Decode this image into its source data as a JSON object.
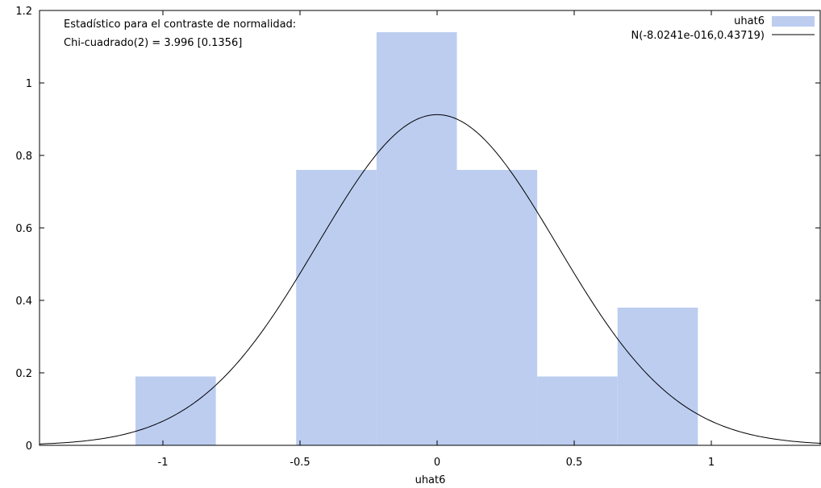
{
  "chart_data": {
    "type": "bar",
    "title": "",
    "xlabel": "uhat6",
    "ylabel": "",
    "xlim": [
      -1.45,
      1.4
    ],
    "ylim": [
      0,
      1.2
    ],
    "xticks": [
      -1,
      -0.5,
      0,
      0.5,
      1
    ],
    "xtick_labels": [
      "-1",
      "-0.5",
      "0",
      "0.5",
      "1"
    ],
    "yticks": [
      0,
      0.2,
      0.4,
      0.6,
      0.8,
      1,
      1.2
    ],
    "ytick_labels": [
      "0",
      "0.2",
      "0.4",
      "0.6",
      "0.8",
      "1",
      "1.2"
    ],
    "grid": false,
    "legend_position": "top-right",
    "bin_width": 0.293,
    "series": [
      {
        "name": "uhat6",
        "kind": "histogram",
        "color": "#bccdf0",
        "bins": [
          {
            "start": -1.1,
            "end": -0.807,
            "density": 0.19
          },
          {
            "start": -0.807,
            "end": -0.514,
            "density": 0
          },
          {
            "start": -0.514,
            "end": -0.221,
            "density": 0.76
          },
          {
            "start": -0.221,
            "end": 0.072,
            "density": 1.14
          },
          {
            "start": 0.072,
            "end": 0.365,
            "density": 0.76
          },
          {
            "start": 0.365,
            "end": 0.658,
            "density": 0.19
          },
          {
            "start": 0.658,
            "end": 0.951,
            "density": 0.38
          }
        ]
      },
      {
        "name": "N(-8.0241e-016,0.43719)",
        "kind": "normal-curve",
        "color": "#000000",
        "mean": -8.0241e-16,
        "sd": 0.43719
      }
    ],
    "annotations": [
      "Estadístico para el contraste de normalidad:",
      "Chi-cuadrado(2) = 3.996 [0.1356]"
    ]
  }
}
